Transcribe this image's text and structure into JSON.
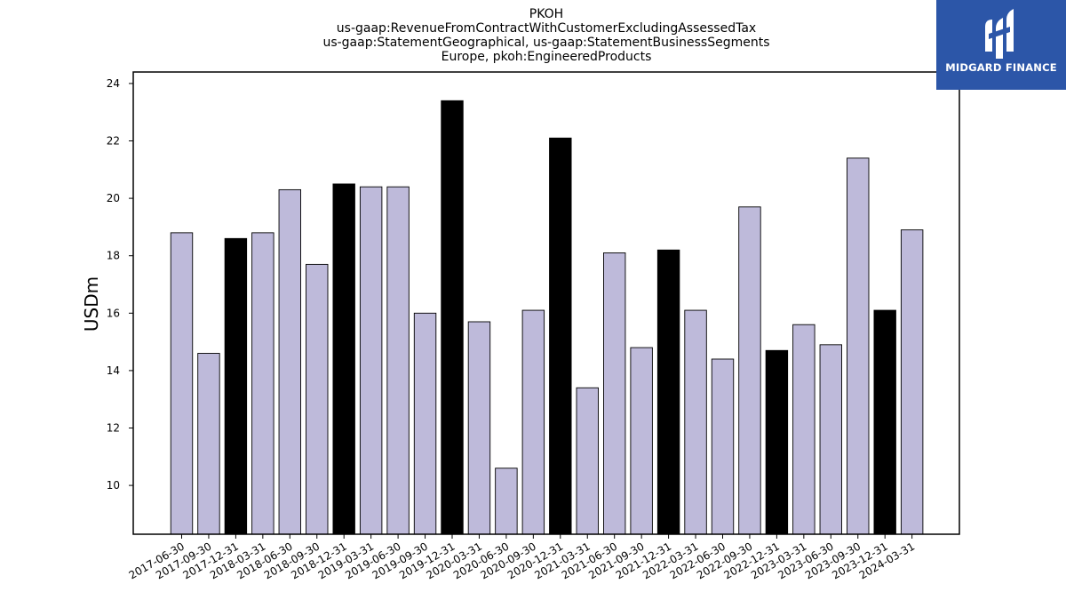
{
  "chart_data": {
    "type": "bar",
    "title_lines": [
      "PKOH",
      "us-gaap:RevenueFromContractWithCustomerExcludingAssessedTax",
      "us-gaap:StatementGeographical, us-gaap:StatementBusinessSegments",
      "Europe, pkoh:EngineeredProducts"
    ],
    "xlabel": "",
    "ylabel": "USDm",
    "ylim": [
      8.3,
      24.4
    ],
    "yticks": [
      10,
      12,
      14,
      16,
      18,
      20,
      22,
      24
    ],
    "categories": [
      "2017-06-30",
      "2017-09-30",
      "2017-12-31",
      "2018-03-31",
      "2018-06-30",
      "2018-09-30",
      "2018-12-31",
      "2019-03-31",
      "2019-06-30",
      "2019-09-30",
      "2019-12-31",
      "2020-03-31",
      "2020-06-30",
      "2020-09-30",
      "2020-12-31",
      "2021-03-31",
      "2021-06-30",
      "2021-09-30",
      "2021-12-31",
      "2022-03-31",
      "2022-06-30",
      "2022-09-30",
      "2022-12-31",
      "2023-03-31",
      "2023-06-30",
      "2023-09-30",
      "2023-12-31",
      "2024-03-31"
    ],
    "values": [
      18.8,
      14.6,
      18.6,
      18.8,
      20.3,
      17.7,
      20.5,
      20.4,
      20.4,
      16.0,
      23.4,
      15.7,
      10.6,
      16.1,
      22.1,
      13.4,
      18.1,
      14.8,
      18.2,
      16.1,
      14.4,
      19.7,
      14.7,
      15.6,
      14.9,
      21.4,
      16.1,
      18.9
    ],
    "highlighted": [
      false,
      false,
      true,
      false,
      false,
      false,
      true,
      false,
      false,
      false,
      true,
      false,
      false,
      false,
      true,
      false,
      false,
      false,
      true,
      false,
      false,
      false,
      true,
      false,
      false,
      false,
      true,
      false
    ],
    "colors": {
      "bar": "#bebada",
      "highlight": "#000000",
      "edge": "#000000"
    },
    "grid": false,
    "legend": "none"
  },
  "logo": {
    "text": "MIDGARD FINANCE",
    "color": "#2c56a8"
  }
}
